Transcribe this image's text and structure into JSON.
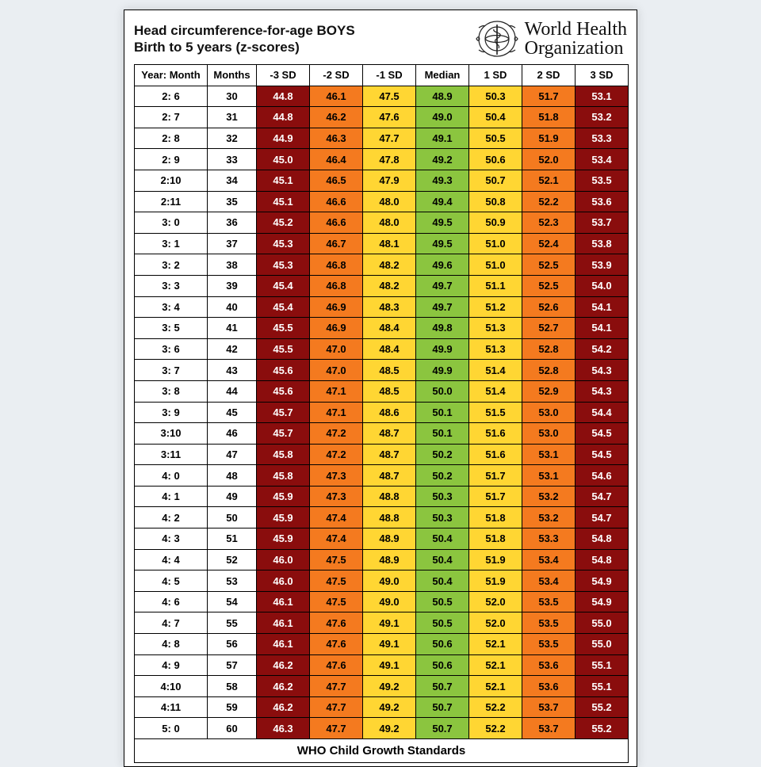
{
  "title_line1": "Head circumference-for-age BOYS",
  "title_line2": "Birth to 5 years (z-scores)",
  "org_line1": "World Health",
  "org_line2": "Organization",
  "footer": "WHO Child Growth Standards",
  "columns": [
    "Year: Month",
    "Months",
    "-3 SD",
    "-2 SD",
    "-1 SD",
    "Median",
    "1 SD",
    "2 SD",
    "3 SD"
  ],
  "colors": {
    "sd3_neg": {
      "bg": "#8a0d0d",
      "fg": "#ffffff"
    },
    "sd2_neg": {
      "bg": "#f47a1f",
      "fg": "#000000"
    },
    "sd1_neg": {
      "bg": "#ffd633",
      "fg": "#000000"
    },
    "median": {
      "bg": "#8bc53f",
      "fg": "#000000"
    },
    "sd1_pos": {
      "bg": "#ffd633",
      "fg": "#000000"
    },
    "sd2_pos": {
      "bg": "#f47a1f",
      "fg": "#000000"
    },
    "sd3_pos": {
      "bg": "#8a0d0d",
      "fg": "#ffffff"
    }
  },
  "rows": [
    {
      "ym": "2: 6",
      "m": "30",
      "v": [
        "44.8",
        "46.1",
        "47.5",
        "48.9",
        "50.3",
        "51.7",
        "53.1"
      ]
    },
    {
      "ym": "2: 7",
      "m": "31",
      "v": [
        "44.8",
        "46.2",
        "47.6",
        "49.0",
        "50.4",
        "51.8",
        "53.2"
      ]
    },
    {
      "ym": "2: 8",
      "m": "32",
      "v": [
        "44.9",
        "46.3",
        "47.7",
        "49.1",
        "50.5",
        "51.9",
        "53.3"
      ]
    },
    {
      "ym": "2: 9",
      "m": "33",
      "v": [
        "45.0",
        "46.4",
        "47.8",
        "49.2",
        "50.6",
        "52.0",
        "53.4"
      ]
    },
    {
      "ym": "2:10",
      "m": "34",
      "v": [
        "45.1",
        "46.5",
        "47.9",
        "49.3",
        "50.7",
        "52.1",
        "53.5"
      ]
    },
    {
      "ym": "2:11",
      "m": "35",
      "v": [
        "45.1",
        "46.6",
        "48.0",
        "49.4",
        "50.8",
        "52.2",
        "53.6"
      ]
    },
    {
      "ym": "3: 0",
      "m": "36",
      "v": [
        "45.2",
        "46.6",
        "48.0",
        "49.5",
        "50.9",
        "52.3",
        "53.7"
      ]
    },
    {
      "ym": "3: 1",
      "m": "37",
      "v": [
        "45.3",
        "46.7",
        "48.1",
        "49.5",
        "51.0",
        "52.4",
        "53.8"
      ]
    },
    {
      "ym": "3: 2",
      "m": "38",
      "v": [
        "45.3",
        "46.8",
        "48.2",
        "49.6",
        "51.0",
        "52.5",
        "53.9"
      ]
    },
    {
      "ym": "3: 3",
      "m": "39",
      "v": [
        "45.4",
        "46.8",
        "48.2",
        "49.7",
        "51.1",
        "52.5",
        "54.0"
      ]
    },
    {
      "ym": "3: 4",
      "m": "40",
      "v": [
        "45.4",
        "46.9",
        "48.3",
        "49.7",
        "51.2",
        "52.6",
        "54.1"
      ]
    },
    {
      "ym": "3: 5",
      "m": "41",
      "v": [
        "45.5",
        "46.9",
        "48.4",
        "49.8",
        "51.3",
        "52.7",
        "54.1"
      ]
    },
    {
      "ym": "3: 6",
      "m": "42",
      "v": [
        "45.5",
        "47.0",
        "48.4",
        "49.9",
        "51.3",
        "52.8",
        "54.2"
      ]
    },
    {
      "ym": "3: 7",
      "m": "43",
      "v": [
        "45.6",
        "47.0",
        "48.5",
        "49.9",
        "51.4",
        "52.8",
        "54.3"
      ]
    },
    {
      "ym": "3: 8",
      "m": "44",
      "v": [
        "45.6",
        "47.1",
        "48.5",
        "50.0",
        "51.4",
        "52.9",
        "54.3"
      ]
    },
    {
      "ym": "3: 9",
      "m": "45",
      "v": [
        "45.7",
        "47.1",
        "48.6",
        "50.1",
        "51.5",
        "53.0",
        "54.4"
      ]
    },
    {
      "ym": "3:10",
      "m": "46",
      "v": [
        "45.7",
        "47.2",
        "48.7",
        "50.1",
        "51.6",
        "53.0",
        "54.5"
      ]
    },
    {
      "ym": "3:11",
      "m": "47",
      "v": [
        "45.8",
        "47.2",
        "48.7",
        "50.2",
        "51.6",
        "53.1",
        "54.5"
      ]
    },
    {
      "ym": "4: 0",
      "m": "48",
      "v": [
        "45.8",
        "47.3",
        "48.7",
        "50.2",
        "51.7",
        "53.1",
        "54.6"
      ]
    },
    {
      "ym": "4: 1",
      "m": "49",
      "v": [
        "45.9",
        "47.3",
        "48.8",
        "50.3",
        "51.7",
        "53.2",
        "54.7"
      ]
    },
    {
      "ym": "4: 2",
      "m": "50",
      "v": [
        "45.9",
        "47.4",
        "48.8",
        "50.3",
        "51.8",
        "53.2",
        "54.7"
      ]
    },
    {
      "ym": "4: 3",
      "m": "51",
      "v": [
        "45.9",
        "47.4",
        "48.9",
        "50.4",
        "51.8",
        "53.3",
        "54.8"
      ]
    },
    {
      "ym": "4: 4",
      "m": "52",
      "v": [
        "46.0",
        "47.5",
        "48.9",
        "50.4",
        "51.9",
        "53.4",
        "54.8"
      ]
    },
    {
      "ym": "4: 5",
      "m": "53",
      "v": [
        "46.0",
        "47.5",
        "49.0",
        "50.4",
        "51.9",
        "53.4",
        "54.9"
      ]
    },
    {
      "ym": "4: 6",
      "m": "54",
      "v": [
        "46.1",
        "47.5",
        "49.0",
        "50.5",
        "52.0",
        "53.5",
        "54.9"
      ]
    },
    {
      "ym": "4: 7",
      "m": "55",
      "v": [
        "46.1",
        "47.6",
        "49.1",
        "50.5",
        "52.0",
        "53.5",
        "55.0"
      ]
    },
    {
      "ym": "4: 8",
      "m": "56",
      "v": [
        "46.1",
        "47.6",
        "49.1",
        "50.6",
        "52.1",
        "53.5",
        "55.0"
      ]
    },
    {
      "ym": "4: 9",
      "m": "57",
      "v": [
        "46.2",
        "47.6",
        "49.1",
        "50.6",
        "52.1",
        "53.6",
        "55.1"
      ]
    },
    {
      "ym": "4:10",
      "m": "58",
      "v": [
        "46.2",
        "47.7",
        "49.2",
        "50.7",
        "52.1",
        "53.6",
        "55.1"
      ]
    },
    {
      "ym": "4:11",
      "m": "59",
      "v": [
        "46.2",
        "47.7",
        "49.2",
        "50.7",
        "52.2",
        "53.7",
        "55.2"
      ]
    },
    {
      "ym": "5: 0",
      "m": "60",
      "v": [
        "46.3",
        "47.7",
        "49.2",
        "50.7",
        "52.2",
        "53.7",
        "55.2"
      ]
    }
  ]
}
